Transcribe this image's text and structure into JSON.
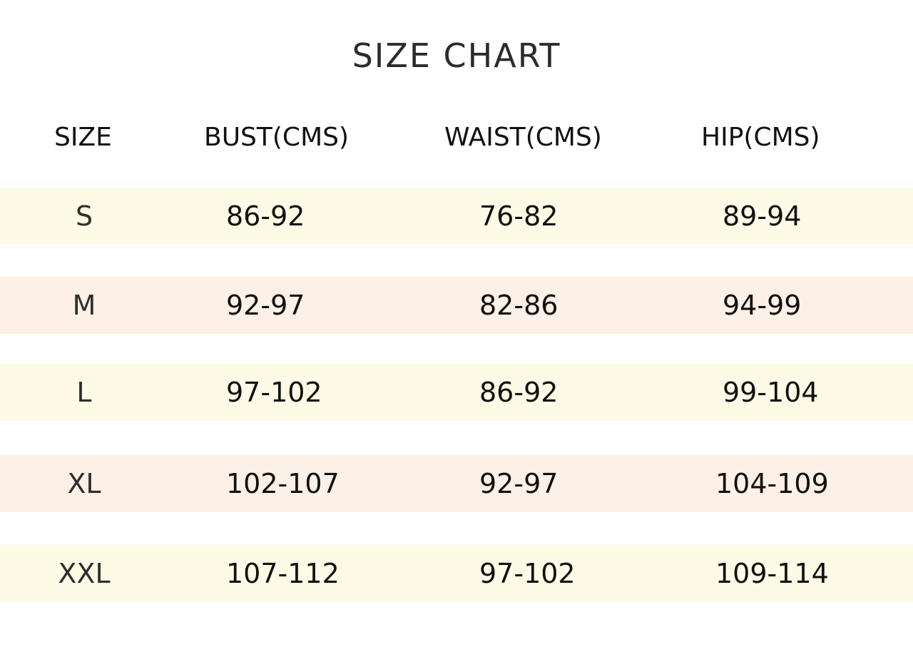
{
  "title": "SIZE CHART",
  "headers": [
    "SIZE",
    "BUST(CMS)",
    "WAIST(CMS)",
    "HIP(CMS)"
  ],
  "row_colors": {
    "yellow": "#fdfbe6",
    "peach": "#fdf0e6"
  },
  "rows": [
    {
      "size": "S",
      "bust": "86-92",
      "waist": "76-82",
      "hip": "89-94",
      "color": "#fdfbe6"
    },
    {
      "size": "M",
      "bust": "92-97",
      "waist": "82-86",
      "hip": "94-99",
      "color": "#fdf0e6"
    },
    {
      "size": "L",
      "bust": "97-102",
      "waist": "86-92",
      "hip": "99-104",
      "color": "#fdfbe6"
    },
    {
      "size": "XL",
      "bust": "102-107",
      "waist": "92-97",
      "hip": "104-109",
      "color": "#fdf0e6"
    },
    {
      "size": "XXL",
      "bust": "107-112",
      "waist": "97-102",
      "hip": "109-114",
      "color": "#fdfbe6"
    }
  ]
}
